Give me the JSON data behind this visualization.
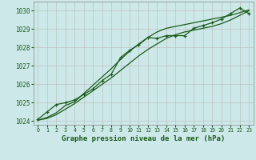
{
  "xlabel": "Graphe pression niveau de la mer (hPa)",
  "background_color": "#cce8e8",
  "grid_color": "#bbbbbb",
  "line_color": "#1a5c1a",
  "x_ticks": [
    0,
    1,
    2,
    3,
    4,
    5,
    6,
    7,
    8,
    9,
    10,
    11,
    12,
    13,
    14,
    15,
    16,
    17,
    18,
    19,
    20,
    21,
    22,
    23
  ],
  "ylim": [
    1023.8,
    1030.5
  ],
  "yticks": [
    1024,
    1025,
    1026,
    1027,
    1028,
    1029,
    1030
  ],
  "series1": [
    1024.1,
    1024.5,
    1024.9,
    1025.0,
    1025.15,
    1025.45,
    1025.75,
    1026.2,
    1026.55,
    1027.45,
    1027.85,
    1028.15,
    1028.55,
    1028.5,
    1028.65,
    1028.65,
    1028.65,
    1029.05,
    1029.2,
    1029.35,
    1029.55,
    1029.85,
    1030.15,
    1029.85
  ],
  "series2": [
    1024.05,
    1024.2,
    1024.45,
    1024.85,
    1025.05,
    1025.5,
    1025.95,
    1026.4,
    1026.85,
    1027.35,
    1027.8,
    1028.2,
    1028.55,
    1028.85,
    1029.05,
    1029.15,
    1029.25,
    1029.35,
    1029.45,
    1029.55,
    1029.65,
    1029.75,
    1029.9,
    1030.05
  ],
  "series3": [
    1024.05,
    1024.15,
    1024.35,
    1024.65,
    1024.95,
    1025.3,
    1025.65,
    1026.0,
    1026.35,
    1026.75,
    1027.15,
    1027.55,
    1027.9,
    1028.2,
    1028.5,
    1028.7,
    1028.85,
    1028.95,
    1029.05,
    1029.15,
    1029.3,
    1029.5,
    1029.75,
    1030.0
  ]
}
